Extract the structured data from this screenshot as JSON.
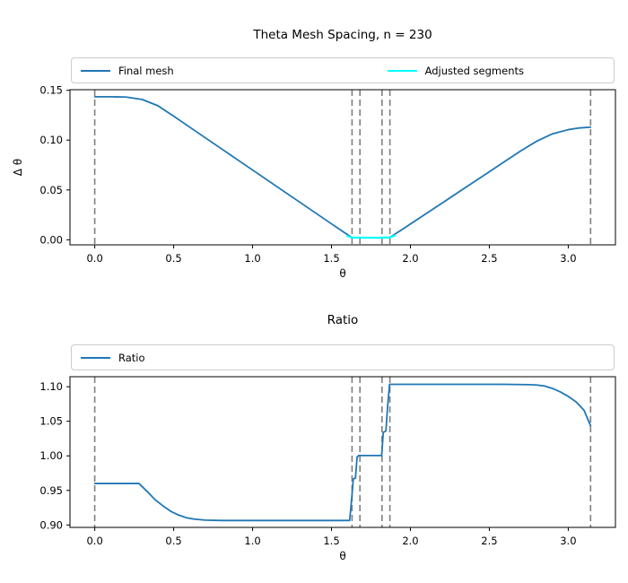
{
  "figure": {
    "background": "#ffffff"
  },
  "colors": {
    "final_mesh": "#1f77b4",
    "adjusted_segments": "#00ffff",
    "ratio": "#1f77b4",
    "boundary_lines": "#7f7f7f",
    "axis": "#000000"
  },
  "chart_data": [
    {
      "type": "line",
      "title": "Theta Mesh Spacing, n = 230",
      "xlabel": "θ",
      "ylabel": "Δ θ",
      "xlim": [
        -0.157,
        3.299
      ],
      "ylim": [
        -0.0051,
        0.1506
      ],
      "xticks": [
        0.0,
        0.5,
        1.0,
        1.5,
        2.0,
        2.5,
        3.0
      ],
      "xtick_labels": [
        "0.0",
        "0.5",
        "1.0",
        "1.5",
        "2.0",
        "2.5",
        "3.0"
      ],
      "yticks": [
        0.0,
        0.05,
        0.1,
        0.15
      ],
      "ytick_labels": [
        "0.00",
        "0.05",
        "0.10",
        "0.15"
      ],
      "grid": false,
      "legend_position": "upper-expand",
      "legend": [
        {
          "label": "Final mesh",
          "color": "#1f77b4"
        },
        {
          "label": "Adjusted segments",
          "color": "#00ffff"
        }
      ],
      "vlines": {
        "x": [
          0.0,
          1.63,
          1.68,
          1.82,
          1.87,
          3.1416
        ],
        "style": "dashed",
        "color": "#7f7f7f"
      },
      "series": [
        {
          "name": "Final mesh",
          "color": "#1f77b4",
          "x": [
            0,
            0.1,
            0.2,
            0.3,
            0.4,
            0.5,
            0.6,
            0.7,
            0.8,
            0.9,
            1.0,
            1.1,
            1.2,
            1.3,
            1.4,
            1.5,
            1.58,
            1.63,
            1.7,
            1.8,
            1.87,
            1.95,
            2.0,
            2.1,
            2.2,
            2.3,
            2.4,
            2.5,
            2.6,
            2.7,
            2.8,
            2.9,
            3.0,
            3.07,
            3.1416
          ],
          "y": [
            0.1435,
            0.1435,
            0.1432,
            0.1408,
            0.1345,
            0.124,
            0.1132,
            0.1024,
            0.0916,
            0.0808,
            0.07,
            0.0592,
            0.0484,
            0.0376,
            0.0268,
            0.016,
            0.0074,
            0.0022,
            0.0021,
            0.0021,
            0.0024,
            0.0105,
            0.0158,
            0.0263,
            0.0368,
            0.0473,
            0.0578,
            0.0683,
            0.0788,
            0.0893,
            0.0989,
            0.1063,
            0.1105,
            0.1122,
            0.113
          ]
        },
        {
          "name": "Adjusted segments",
          "color": "#00ffff",
          "x": [
            1.6,
            1.63,
            1.7,
            1.8,
            1.87,
            1.9
          ],
          "y": [
            0.0038,
            0.0022,
            0.0021,
            0.0021,
            0.0024,
            0.0042
          ]
        }
      ]
    },
    {
      "type": "line",
      "title": "Ratio",
      "xlabel": "θ",
      "ylabel": "",
      "xlim": [
        -0.157,
        3.299
      ],
      "ylim": [
        0.8965,
        1.1145
      ],
      "xticks": [
        0.0,
        0.5,
        1.0,
        1.5,
        2.0,
        2.5,
        3.0
      ],
      "xtick_labels": [
        "0.0",
        "0.5",
        "1.0",
        "1.5",
        "2.0",
        "2.5",
        "3.0"
      ],
      "yticks": [
        0.9,
        0.95,
        1.0,
        1.05,
        1.1
      ],
      "ytick_labels": [
        "0.90",
        "0.95",
        "1.00",
        "1.05",
        "1.10"
      ],
      "grid": false,
      "legend_position": "upper-expand",
      "legend": [
        {
          "label": "Ratio",
          "color": "#1f77b4"
        }
      ],
      "vlines": {
        "x": [
          0.0,
          1.63,
          1.68,
          1.82,
          1.87,
          3.1416
        ],
        "style": "dashed",
        "color": "#7f7f7f"
      },
      "series": [
        {
          "name": "Ratio",
          "color": "#1f77b4",
          "x": [
            0,
            0.28,
            0.33,
            0.38,
            0.43,
            0.48,
            0.53,
            0.58,
            0.63,
            0.7,
            0.8,
            1.0,
            1.3,
            1.6,
            1.615,
            1.628,
            1.638,
            1.652,
            1.662,
            1.672,
            1.7,
            1.8,
            1.818,
            1.828,
            1.845,
            1.855,
            1.868,
            1.9,
            2.0,
            2.3,
            2.6,
            2.75,
            2.8,
            2.85,
            2.9,
            2.95,
            3.0,
            3.05,
            3.1,
            3.1416
          ],
          "y": [
            0.96,
            0.96,
            0.949,
            0.937,
            0.928,
            0.92,
            0.9145,
            0.9105,
            0.9085,
            0.907,
            0.9065,
            0.9065,
            0.9065,
            0.9065,
            0.9065,
            0.938,
            0.9665,
            0.968,
            0.998,
            1.0005,
            1.0005,
            1.0005,
            1.0005,
            1.034,
            1.036,
            1.07,
            1.1035,
            1.1035,
            1.1035,
            1.1035,
            1.1035,
            1.103,
            1.1025,
            1.101,
            1.0975,
            1.0925,
            1.086,
            1.078,
            1.066,
            1.0435
          ]
        }
      ]
    }
  ]
}
